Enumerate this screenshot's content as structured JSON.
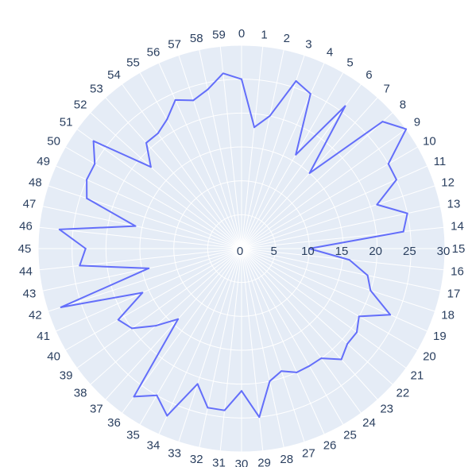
{
  "chart_data": {
    "type": "polar-line",
    "title": "",
    "theta_unit": "category",
    "categories": [
      "0",
      "1",
      "2",
      "3",
      "4",
      "5",
      "6",
      "7",
      "8",
      "9",
      "10",
      "11",
      "12",
      "13",
      "14",
      "15",
      "16",
      "17",
      "18",
      "19",
      "20",
      "21",
      "22",
      "23",
      "24",
      "25",
      "26",
      "27",
      "28",
      "29",
      "30",
      "31",
      "32",
      "33",
      "34",
      "35",
      "36",
      "37",
      "38",
      "39",
      "40",
      "41",
      "42",
      "43",
      "44",
      "45",
      "46",
      "47",
      "48",
      "49",
      "50",
      "51",
      "52",
      "53",
      "54",
      "55",
      "56",
      "57",
      "58",
      "59"
    ],
    "series": [
      {
        "values": [
          25,
          18,
          20,
          26,
          25,
          16,
          26,
          15,
          28,
          30,
          25,
          25,
          21,
          25,
          24,
          10,
          16,
          19,
          20,
          24,
          20,
          21,
          21,
          22,
          20,
          20,
          20,
          19,
          20,
          25,
          21,
          24,
          24,
          21,
          27,
          25,
          27,
          14,
          17,
          20,
          21,
          16,
          28,
          14,
          24,
          23,
          27,
          16,
          24,
          25,
          25,
          27,
          18,
          21,
          21,
          22,
          24,
          23,
          24,
          26
        ],
        "color": "#636efa"
      }
    ],
    "radial_ticks": [
      "0",
      "5",
      "10",
      "15",
      "20",
      "25",
      "30"
    ],
    "radial_range": [
      0,
      30
    ],
    "angular_direction": "clockwise",
    "angular_rotation": "0 at top",
    "grid": true,
    "background_color": "#e5ecf6",
    "grid_color": "#ffffff",
    "text_color": "#2a3f5f",
    "legend": "none"
  }
}
